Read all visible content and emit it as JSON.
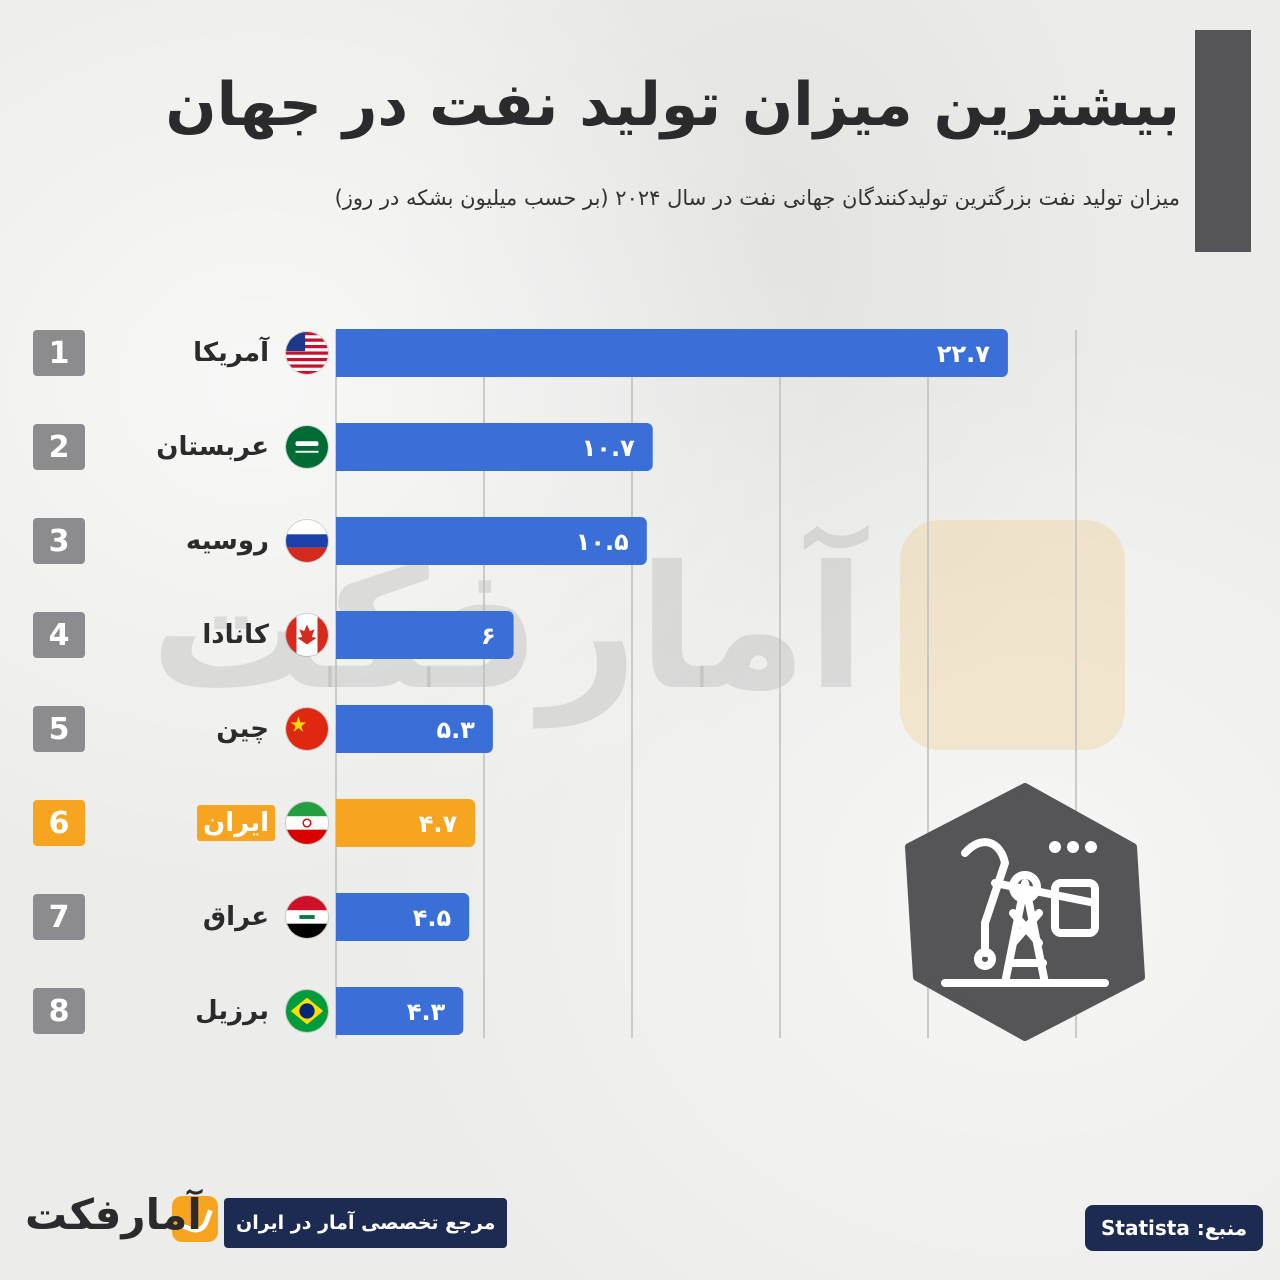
{
  "title": "بیشترین میزان تولید نفت در جهان",
  "subtitle": "میزان تولید نفت بزرگترین تولیدکنندگان جهانی نفت در سال ۲۰۲۴ (بر حسب میلیون بشکه در روز)",
  "watermark_text": "آمارفکت",
  "colors": {
    "bar": "#3b6fd8",
    "highlight": "#f7a520",
    "rank_box": "#8c8c8e",
    "navy": "#1d2a52",
    "grid": "#bdbdbd"
  },
  "chart_data": {
    "type": "bar",
    "orientation": "horizontal",
    "title": "بیشترین میزان تولید نفت در جهان",
    "xlim": [
      0,
      25
    ],
    "grid": true,
    "highlight_index": 5,
    "categories": [
      "آمریکا",
      "عربستان",
      "روسیه",
      "کانادا",
      "چین",
      "ایران",
      "عراق",
      "برزیل"
    ],
    "ranks": [
      "1",
      "2",
      "3",
      "4",
      "5",
      "6",
      "7",
      "8"
    ],
    "flags": [
      "us-flag-icon",
      "saudi-flag-icon",
      "russia-flag-icon",
      "canada-flag-icon",
      "china-flag-icon",
      "iran-flag-icon",
      "iraq-flag-icon",
      "brazil-flag-icon"
    ],
    "values": [
      22.7,
      10.7,
      10.5,
      6,
      5.3,
      4.7,
      4.5,
      4.3
    ],
    "value_labels": [
      "۲۲.۷",
      "۱۰.۷",
      "۱۰.۵",
      "۶",
      "۵.۳",
      "۴.۷",
      "۴.۵",
      "۴.۳"
    ]
  },
  "footer": {
    "source": "منبع: Statista",
    "tagline": "مرجع تخصصی آمار در ایران",
    "logo_text": "آمارفکت"
  },
  "icons": {
    "badge": "oil-pump-icon"
  }
}
